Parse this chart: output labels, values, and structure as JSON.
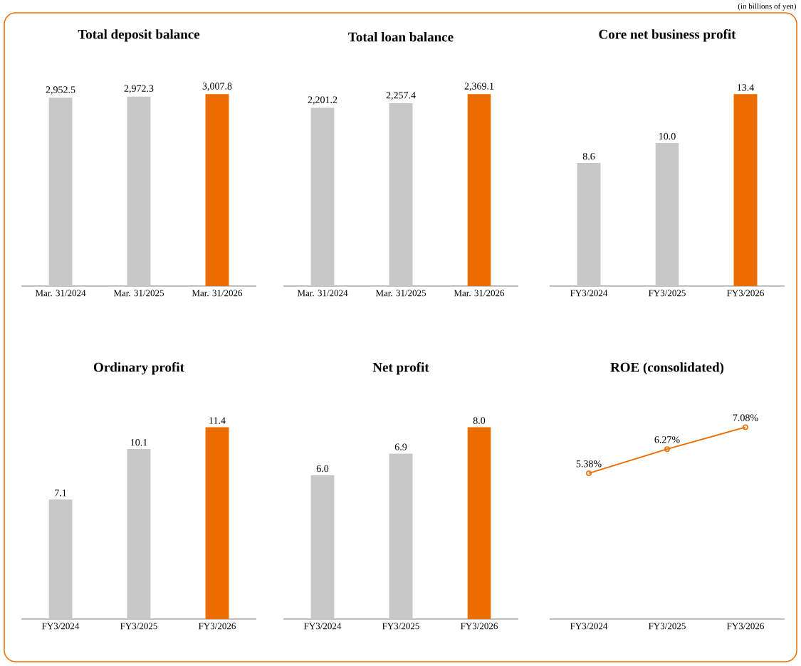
{
  "chart_data": [
    {
      "type": "bar",
      "title": "Total deposit balance",
      "categories": [
        "Mar. 31/2024",
        "Mar. 31/2025",
        "Mar. 31/2026"
      ],
      "values": [
        2952.5,
        2972.3,
        3007.8
      ],
      "value_labels": [
        "2,952.5",
        "2,972.3",
        "3,007.8"
      ],
      "colors": [
        "#c8c8c8",
        "#c8c8c8",
        "#ed6c00"
      ],
      "tick_labels": "x"
    },
    {
      "type": "bar",
      "title": "Total loan balance",
      "categories": [
        "Mar. 31/2024",
        "Mar. 31/2025",
        "Mar. 31/2026"
      ],
      "values": [
        2201.2,
        2257.4,
        2369.1
      ],
      "value_labels": [
        "2,201.2",
        "2,257.4",
        "2,369.1"
      ],
      "colors": [
        "#c8c8c8",
        "#c8c8c8",
        "#ed6c00"
      ],
      "tick_labels": "x"
    },
    {
      "type": "bar",
      "title": "Core net business profit",
      "categories": [
        "FY3/2024",
        "FY3/2025",
        "FY3/2026"
      ],
      "values": [
        8.6,
        10.0,
        13.4
      ],
      "value_labels": [
        "8.6",
        "10.0",
        "13.4"
      ],
      "colors": [
        "#c8c8c8",
        "#c8c8c8",
        "#ed6c00"
      ],
      "tick_labels": "x",
      "annotations": [
        "(in billions of yen)"
      ]
    },
    {
      "type": "bar",
      "title": "Ordinary profit",
      "categories": [
        "FY3/2024",
        "FY3/2025",
        "FY3/2026"
      ],
      "values": [
        7.1,
        10.1,
        11.4
      ],
      "value_labels": [
        "7.1",
        "10.1",
        "11.4"
      ],
      "colors": [
        "#c8c8c8",
        "#c8c8c8",
        "#ed6c00"
      ],
      "tick_labels": "x"
    },
    {
      "type": "bar",
      "title": "Net profit",
      "categories": [
        "FY3/2024",
        "FY3/2025",
        "FY3/2026"
      ],
      "values": [
        6.0,
        6.9,
        8.0
      ],
      "value_labels": [
        "6.0",
        "6.9",
        "8.0"
      ],
      "colors": [
        "#c8c8c8",
        "#c8c8c8",
        "#ed6c00"
      ],
      "tick_labels": "x"
    },
    {
      "type": "line",
      "title": "ROE (consolidated)",
      "categories": [
        "FY3/2024",
        "FY3/2025",
        "FY3/2026"
      ],
      "values": [
        5.38,
        6.27,
        7.08
      ],
      "value_labels": [
        "5.38%",
        "6.27%",
        "7.08%"
      ],
      "color": "#ed6c00",
      "marker": "circle",
      "line_style": "solid",
      "tick_labels": "x"
    }
  ]
}
